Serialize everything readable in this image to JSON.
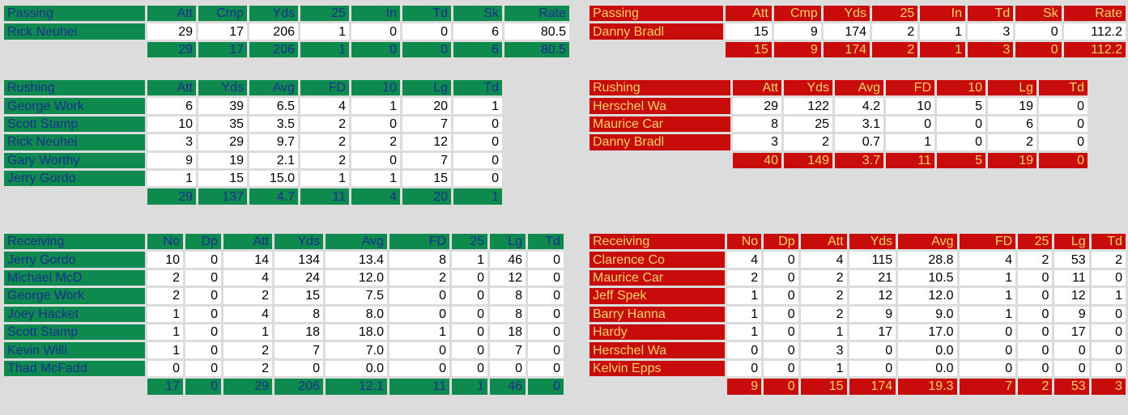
{
  "home": {
    "passing": {
      "title": "Passing",
      "cols": [
        "Att",
        "Cmp",
        "Yds",
        "25",
        "In",
        "Td",
        "Sk",
        "Rate"
      ],
      "rows": [
        {
          "name": "Rick Neuhei",
          "vals": [
            "29",
            "17",
            "206",
            "1",
            "0",
            "0",
            "6",
            "80.5"
          ]
        }
      ],
      "total": [
        "29",
        "17",
        "206",
        "1",
        "0",
        "0",
        "6",
        "80.5"
      ]
    },
    "rushing": {
      "title": "Rushing",
      "cols": [
        "Att",
        "Yds",
        "Avg",
        "FD",
        "10",
        "Lg",
        "Td"
      ],
      "rows": [
        {
          "name": "George Work",
          "vals": [
            "6",
            "39",
            "6.5",
            "4",
            "1",
            "20",
            "1"
          ]
        },
        {
          "name": "Scott Stamp",
          "vals": [
            "10",
            "35",
            "3.5",
            "2",
            "0",
            "7",
            "0"
          ]
        },
        {
          "name": "Rick Neuhei",
          "vals": [
            "3",
            "29",
            "9.7",
            "2",
            "2",
            "12",
            "0"
          ]
        },
        {
          "name": "Gary Worthy",
          "vals": [
            "9",
            "19",
            "2.1",
            "2",
            "0",
            "7",
            "0"
          ]
        },
        {
          "name": "Jerry Gordo",
          "vals": [
            "1",
            "15",
            "15.0",
            "1",
            "1",
            "15",
            "0"
          ]
        }
      ],
      "total": [
        "29",
        "137",
        "4.7",
        "11",
        "4",
        "20",
        "1"
      ]
    },
    "receiving": {
      "title": "Receiving",
      "cols": [
        "No",
        "Dp",
        "Att",
        "Yds",
        "Avg",
        "FD",
        "25",
        "Lg",
        "Td"
      ],
      "rows": [
        {
          "name": "Jerry Gordo",
          "vals": [
            "10",
            "0",
            "14",
            "134",
            "13.4",
            "8",
            "1",
            "46",
            "0"
          ]
        },
        {
          "name": "Michael McD",
          "vals": [
            "2",
            "0",
            "4",
            "24",
            "12.0",
            "2",
            "0",
            "12",
            "0"
          ]
        },
        {
          "name": "George Work",
          "vals": [
            "2",
            "0",
            "2",
            "15",
            "7.5",
            "0",
            "0",
            "8",
            "0"
          ]
        },
        {
          "name": "Joey Hacket",
          "vals": [
            "1",
            "0",
            "4",
            "8",
            "8.0",
            "0",
            "0",
            "8",
            "0"
          ]
        },
        {
          "name": "Scott Stamp",
          "vals": [
            "1",
            "0",
            "1",
            "18",
            "18.0",
            "1",
            "0",
            "18",
            "0"
          ]
        },
        {
          "name": "Kevin Willi",
          "vals": [
            "1",
            "0",
            "2",
            "7",
            "7.0",
            "0",
            "0",
            "7",
            "0"
          ]
        },
        {
          "name": "Thad McFadd",
          "vals": [
            "0",
            "0",
            "2",
            "0",
            "0.0",
            "0",
            "0",
            "0",
            "0"
          ]
        }
      ],
      "total": [
        "17",
        "0",
        "29",
        "206",
        "12.1",
        "11",
        "1",
        "46",
        "0"
      ]
    }
  },
  "away": {
    "passing": {
      "title": "Passing",
      "cols": [
        "Att",
        "Cmp",
        "Yds",
        "25",
        "In",
        "Td",
        "Sk",
        "Rate"
      ],
      "rows": [
        {
          "name": "Danny Bradl",
          "vals": [
            "15",
            "9",
            "174",
            "2",
            "1",
            "3",
            "0",
            "112.2"
          ]
        }
      ],
      "total": [
        "15",
        "9",
        "174",
        "2",
        "1",
        "3",
        "0",
        "112.2"
      ]
    },
    "rushing": {
      "title": "Rushing",
      "cols": [
        "Att",
        "Yds",
        "Avg",
        "FD",
        "10",
        "Lg",
        "Td"
      ],
      "rows": [
        {
          "name": "Herschel Wa",
          "vals": [
            "29",
            "122",
            "4.2",
            "10",
            "5",
            "19",
            "0"
          ]
        },
        {
          "name": "Maurice Car",
          "vals": [
            "8",
            "25",
            "3.1",
            "0",
            "0",
            "6",
            "0"
          ]
        },
        {
          "name": "Danny Bradl",
          "vals": [
            "3",
            "2",
            "0.7",
            "1",
            "0",
            "2",
            "0"
          ]
        }
      ],
      "total": [
        "40",
        "149",
        "3.7",
        "11",
        "5",
        "19",
        "0"
      ]
    },
    "receiving": {
      "title": "Receiving",
      "cols": [
        "No",
        "Dp",
        "Att",
        "Yds",
        "Avg",
        "FD",
        "25",
        "Lg",
        "Td"
      ],
      "rows": [
        {
          "name": "Clarence Co",
          "vals": [
            "4",
            "0",
            "4",
            "115",
            "28.8",
            "4",
            "2",
            "53",
            "2"
          ]
        },
        {
          "name": "Maurice Car",
          "vals": [
            "2",
            "0",
            "2",
            "21",
            "10.5",
            "1",
            "0",
            "11",
            "0"
          ]
        },
        {
          "name": "Jeff Spek",
          "vals": [
            "1",
            "0",
            "2",
            "12",
            "12.0",
            "1",
            "0",
            "12",
            "1"
          ]
        },
        {
          "name": "Barry Hanna",
          "vals": [
            "1",
            "0",
            "2",
            "9",
            "9.0",
            "1",
            "0",
            "9",
            "0"
          ]
        },
        {
          "name": "Hardy",
          "vals": [
            "1",
            "0",
            "1",
            "17",
            "17.0",
            "0",
            "0",
            "17",
            "0"
          ]
        },
        {
          "name": "Herschel Wa",
          "vals": [
            "0",
            "0",
            "3",
            "0",
            "0.0",
            "0",
            "0",
            "0",
            "0"
          ]
        },
        {
          "name": "Kelvin Epps",
          "vals": [
            "0",
            "0",
            "1",
            "0",
            "0.0",
            "0",
            "0",
            "0",
            "0"
          ]
        }
      ],
      "total": [
        "9",
        "0",
        "15",
        "174",
        "19.3",
        "7",
        "2",
        "53",
        "3"
      ]
    }
  },
  "colors": {
    "home": "#0e8a4f",
    "home_text": "#1b2f8f",
    "away": "#c80b0b",
    "away_text": "#f0d266"
  }
}
